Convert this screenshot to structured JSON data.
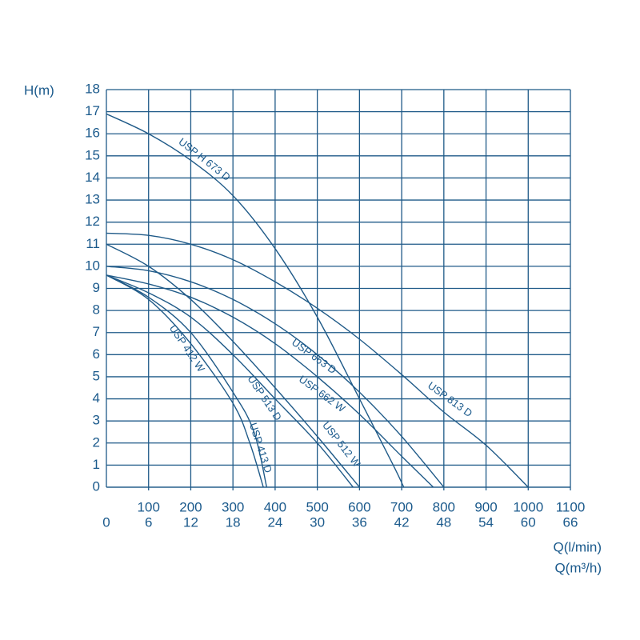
{
  "chart_data": {
    "type": "line",
    "y_label": "H(m)",
    "x_label": "Q(l/min)",
    "x2_label": "Q(m³/h)",
    "xlim": [
      0,
      1100
    ],
    "ylim": [
      0,
      18
    ],
    "xticks": [
      100,
      200,
      300,
      400,
      500,
      600,
      700,
      800,
      900,
      1000,
      1100
    ],
    "x_secondary_ticks": [
      {
        "value": 0,
        "label": "0"
      },
      {
        "value": 100,
        "label": "6"
      },
      {
        "value": 200,
        "label": "12"
      },
      {
        "value": 300,
        "label": "18"
      },
      {
        "value": 400,
        "label": "24"
      },
      {
        "value": 500,
        "label": "30"
      },
      {
        "value": 600,
        "label": "36"
      },
      {
        "value": 700,
        "label": "42"
      },
      {
        "value": 800,
        "label": "48"
      },
      {
        "value": 900,
        "label": "54"
      },
      {
        "value": 1000,
        "label": "60"
      },
      {
        "value": 1100,
        "label": "66"
      }
    ],
    "yticks": [
      0,
      1,
      2,
      3,
      4,
      5,
      6,
      7,
      8,
      9,
      10,
      11,
      12,
      13,
      14,
      15,
      16,
      17,
      18
    ],
    "grid": true,
    "series": [
      {
        "name": "USP H 673 D",
        "color": "#1f5a88",
        "x": [
          0,
          100,
          200,
          300,
          400,
          500,
          600,
          680,
          705
        ],
        "values": [
          16.9,
          16,
          14.8,
          13.2,
          10.8,
          7.7,
          4,
          1,
          0
        ]
      },
      {
        "name": "USP 663 D",
        "color": "#1f5a88",
        "x": [
          0,
          100,
          200,
          300,
          400,
          500,
          600,
          700,
          800
        ],
        "values": [
          10,
          9.8,
          9.3,
          8.5,
          7.4,
          6,
          4.3,
          2.3,
          0
        ]
      },
      {
        "name": "USP 662 W",
        "color": "#1f5a88",
        "x": [
          0,
          100,
          200,
          300,
          400,
          500,
          600,
          700,
          775
        ],
        "values": [
          9.6,
          9.2,
          8.6,
          7.7,
          6.5,
          5,
          3.3,
          1.4,
          0
        ]
      },
      {
        "name": "USP 813 D",
        "color": "#1f5a88",
        "x": [
          0,
          100,
          200,
          300,
          400,
          500,
          600,
          700,
          800,
          900,
          1000
        ],
        "values": [
          11.5,
          11.4,
          11,
          10.3,
          9.3,
          8.1,
          6.7,
          5.1,
          3.4,
          1.9,
          0
        ]
      },
      {
        "name": "USP 412 W",
        "color": "#1f5a88",
        "x": [
          0,
          100,
          200,
          300,
          350,
          380
        ],
        "values": [
          9.6,
          8.6,
          7,
          4.3,
          2.5,
          0
        ]
      },
      {
        "name": "USP 513 D",
        "color": "#1f5a88",
        "x": [
          0,
          100,
          200,
          300,
          400,
          500,
          585
        ],
        "values": [
          9.6,
          8.8,
          7.7,
          6,
          4,
          2,
          0
        ]
      },
      {
        "name": "USP 512 W",
        "color": "#1f5a88",
        "x": [
          0,
          100,
          200,
          300,
          400,
          500,
          600
        ],
        "values": [
          11,
          10,
          8.5,
          6.6,
          4.5,
          2.3,
          0
        ]
      },
      {
        "name": "USP 413 D",
        "color": "#1f5a88",
        "x": [
          0,
          100,
          200,
          300,
          340,
          372
        ],
        "values": [
          9.6,
          8.5,
          6.5,
          3.8,
          2,
          0
        ]
      }
    ]
  }
}
